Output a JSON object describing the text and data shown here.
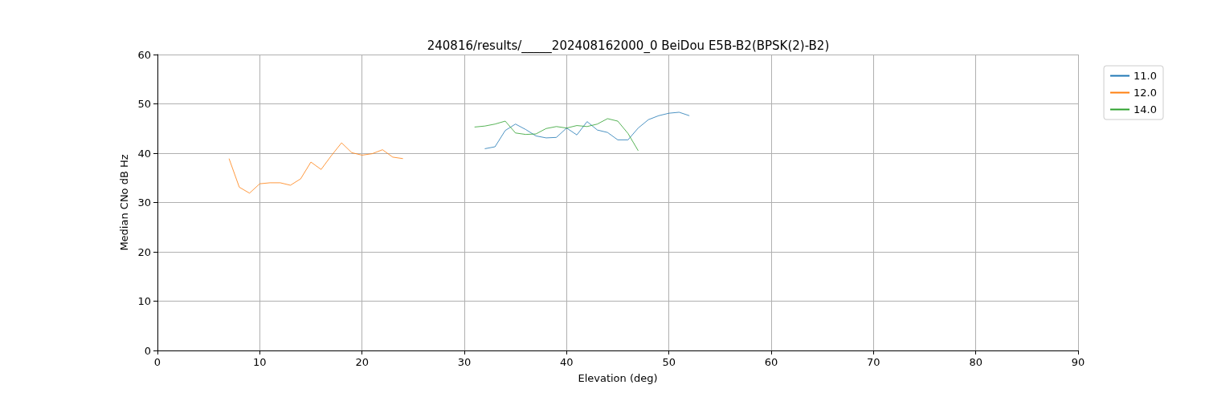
{
  "chart_data": {
    "type": "line",
    "title": "240816/results/_____202408162000_0 BeiDou E5B-B2(BPSK(2)-B2)",
    "xlabel": "Elevation (deg)",
    "ylabel": "Median CNo dB Hz",
    "xlim": [
      0,
      90
    ],
    "xticks": [
      0,
      10,
      20,
      30,
      40,
      50,
      60,
      70,
      80,
      90
    ],
    "ylim": [
      0,
      60
    ],
    "yticks": [
      0,
      10,
      20,
      30,
      40,
      50,
      60
    ],
    "grid": true,
    "legend": "top right",
    "marker": "none",
    "line_style": "solid",
    "series": [
      {
        "name": "11.0",
        "color": "#1f77b4",
        "x": [
          32,
          33,
          34,
          35,
          36,
          37,
          38,
          39,
          40,
          41,
          42,
          43,
          44,
          45,
          46,
          47,
          48,
          49,
          50,
          51,
          52
        ],
        "values": [
          40.9,
          41.3,
          44.6,
          45.9,
          44.8,
          43.5,
          43.1,
          43.2,
          45.1,
          43.7,
          46.4,
          44.7,
          44.2,
          42.7,
          42.7,
          45.1,
          46.8,
          47.6,
          48.1,
          48.3,
          47.6
        ]
      },
      {
        "name": "12.0",
        "color": "#ff7f0e",
        "x": [
          7,
          8,
          9,
          10,
          11,
          12,
          13,
          14,
          15,
          16,
          17,
          18,
          19,
          20,
          21,
          22,
          23,
          24
        ],
        "values": [
          38.9,
          33.1,
          31.9,
          33.8,
          34.0,
          34.0,
          33.5,
          34.8,
          38.2,
          36.7,
          39.5,
          42.1,
          40.1,
          39.6,
          39.9,
          40.7,
          39.2,
          38.9
        ]
      },
      {
        "name": "14.0",
        "color": "#2ca02c",
        "x": [
          31,
          32,
          33,
          34,
          35,
          36,
          37,
          38,
          39,
          40,
          41,
          42,
          43,
          44,
          45,
          46,
          47
        ],
        "values": [
          45.3,
          45.5,
          45.9,
          46.5,
          44.1,
          43.8,
          43.9,
          45.0,
          45.4,
          45.1,
          45.6,
          45.4,
          45.9,
          47.0,
          46.5,
          44.0,
          40.5
        ]
      }
    ]
  }
}
